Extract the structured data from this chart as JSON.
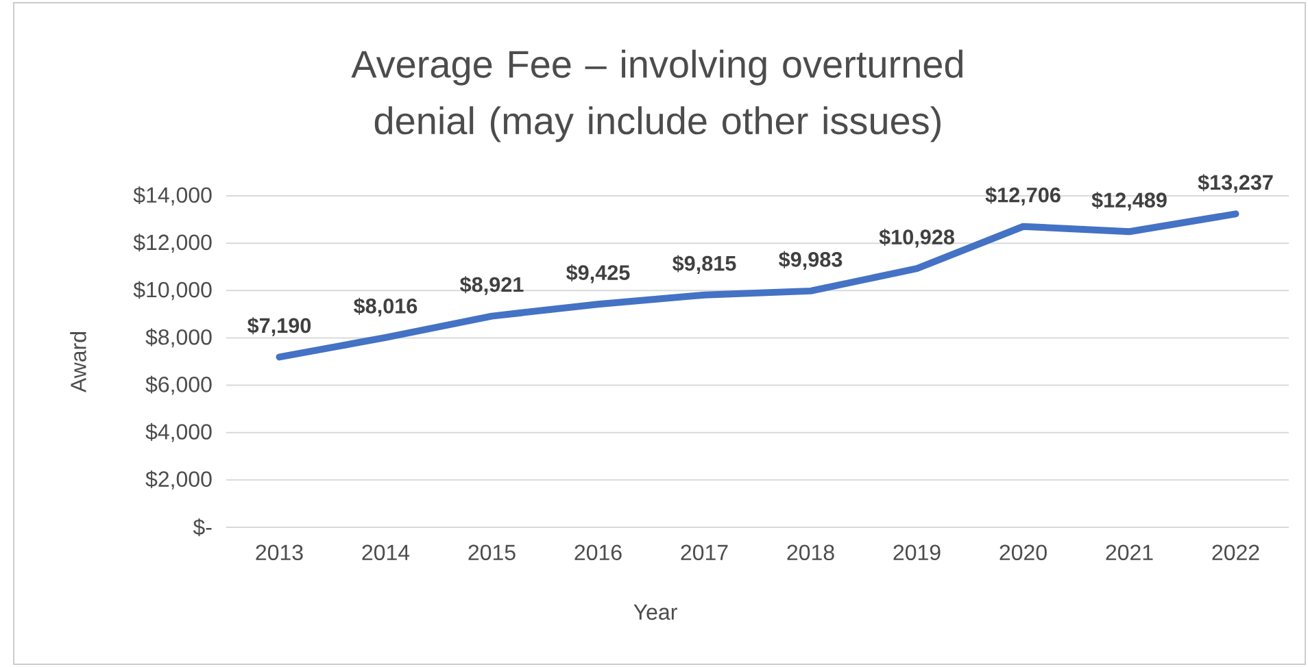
{
  "chart_data": {
    "type": "line",
    "title": "Average Fee – involving overturned denial (may include other issues)",
    "xlabel": "Year",
    "ylabel": "Award",
    "categories": [
      "2013",
      "2014",
      "2015",
      "2016",
      "2017",
      "2018",
      "2019",
      "2020",
      "2021",
      "2022"
    ],
    "series": [
      {
        "color": "#4472c4",
        "values": [
          7190,
          8016,
          8921,
          9425,
          9815,
          9983,
          10928,
          12706,
          12489,
          13237
        ],
        "value_labels": [
          "$7,190",
          "$8,016",
          "$8,921",
          "$9,425",
          "$9,815",
          "$9,983",
          "$10,928",
          "$12,706",
          "$12,489",
          "$13,237"
        ]
      }
    ],
    "ylim": [
      0,
      14000
    ],
    "yticks": [
      {
        "value": 0,
        "label": "$-"
      },
      {
        "value": 2000,
        "label": "$2,000"
      },
      {
        "value": 4000,
        "label": "$4,000"
      },
      {
        "value": 6000,
        "label": "$6,000"
      },
      {
        "value": 8000,
        "label": "$8,000"
      },
      {
        "value": 10000,
        "label": "$10,000"
      },
      {
        "value": 12000,
        "label": "$12,000"
      },
      {
        "value": 14000,
        "label": "$14,000"
      }
    ],
    "grid": "y"
  }
}
